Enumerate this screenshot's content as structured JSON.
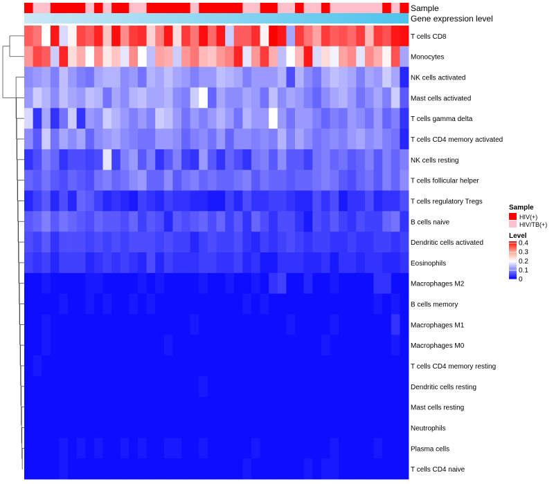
{
  "chart_data": {
    "type": "heatmap",
    "annotation_rows": [
      "Sample",
      "Gene expression level"
    ],
    "rows": [
      "T cells CD8",
      "Monocytes",
      "NK cells activated",
      "Mast cells activated",
      "T cells gamma delta",
      "T cells CD4 memory activated",
      "NK cells resting",
      "T cells follicular helper",
      "T cells regulatory  Tregs",
      "B cells naive",
      "Dendritic cells activated",
      "Eosinophils",
      "Macrophages M2",
      "B cells memory",
      "Macrophages M1",
      "Macrophages M0",
      "T cells CD4 memory resting",
      "Dendritic cells resting",
      "Mast cells resting",
      "Neutrophils",
      "Plasma cells",
      "T cells CD4 naive"
    ],
    "n_columns": 44,
    "sample_groups": [
      "HIV(+)",
      "HIV/TB(+)"
    ],
    "sample_annotation": [
      0,
      1,
      1,
      0,
      0,
      0,
      0,
      1,
      0,
      1,
      0,
      0,
      1,
      1,
      0,
      0,
      0,
      0,
      0,
      1,
      0,
      0,
      0,
      0,
      0,
      1,
      1,
      0,
      0,
      1,
      1,
      0,
      1,
      1,
      0,
      1,
      1,
      1,
      1,
      1,
      1,
      0,
      1,
      0
    ],
    "values": [
      [
        0.34,
        0.32,
        0.2,
        0.4,
        0.17,
        0.21,
        0.36,
        0.34,
        0.39,
        0.25,
        0.41,
        0.3,
        0.37,
        0.38,
        0.24,
        0.31,
        0.4,
        0.23,
        0.37,
        0.32,
        0.41,
        0.33,
        0.4,
        0.16,
        0.34,
        0.34,
        0.38,
        0.21,
        0.42,
        0.4,
        0.13,
        0.37,
        0.32,
        0.28,
        0.37,
        0.34,
        0.35,
        0.33,
        0.37,
        0.26,
        0.37,
        0.35,
        0.4,
        0.41
      ],
      [
        0.29,
        0.36,
        0.34,
        0.16,
        0.39,
        0.23,
        0.27,
        0.2,
        0.3,
        0.22,
        0.25,
        0.18,
        0.3,
        0.2,
        0.15,
        0.28,
        0.27,
        0.16,
        0.29,
        0.32,
        0.26,
        0.25,
        0.29,
        0.31,
        0.39,
        0.18,
        0.29,
        0.37,
        0.27,
        0.15,
        0.2,
        0.26,
        0.4,
        0.17,
        0.23,
        0.19,
        0.28,
        0.3,
        0.18,
        0.3,
        0.27,
        0.21,
        0.35,
        0.13
      ],
      [
        0.11,
        0.12,
        0.13,
        0.1,
        0.15,
        0.12,
        0.1,
        0.09,
        0.13,
        0.14,
        0.14,
        0.11,
        0.12,
        0.09,
        0.14,
        0.13,
        0.15,
        0.13,
        0.12,
        0.1,
        0.12,
        0.12,
        0.15,
        0.14,
        0.13,
        0.1,
        0.12,
        0.12,
        0.12,
        0.14,
        0.06,
        0.14,
        0.11,
        0.09,
        0.13,
        0.15,
        0.14,
        0.13,
        0.1,
        0.13,
        0.12,
        0.16,
        0.13,
        0.03
      ],
      [
        0.12,
        0.16,
        0.14,
        0.11,
        0.15,
        0.13,
        0.12,
        0.15,
        0.14,
        0.09,
        0.13,
        0.11,
        0.14,
        0.15,
        0.13,
        0.13,
        0.14,
        0.11,
        0.1,
        0.16,
        0.2,
        0.08,
        0.13,
        0.11,
        0.11,
        0.13,
        0.12,
        0.09,
        0.15,
        0.11,
        0.13,
        0.12,
        0.1,
        0.08,
        0.11,
        0.13,
        0.14,
        0.12,
        0.09,
        0.11,
        0.13,
        0.1,
        0.16,
        0.07
      ],
      [
        0.17,
        0.04,
        0.13,
        0.04,
        0.09,
        0.16,
        0.04,
        0.12,
        0.11,
        0.16,
        0.14,
        0.12,
        0.1,
        0.12,
        0.1,
        0.16,
        0.15,
        0.12,
        0.09,
        0.12,
        0.1,
        0.12,
        0.14,
        0.12,
        0.09,
        0.14,
        0.12,
        0.12,
        0.2,
        0.12,
        0.09,
        0.12,
        0.12,
        0.1,
        0.08,
        0.1,
        0.09,
        0.12,
        0.11,
        0.09,
        0.12,
        0.08,
        0.1,
        0.04
      ],
      [
        0.11,
        0.07,
        0.16,
        0.09,
        0.13,
        0.11,
        0.13,
        0.08,
        0.11,
        0.12,
        0.13,
        0.11,
        0.1,
        0.09,
        0.09,
        0.12,
        0.12,
        0.11,
        0.08,
        0.1,
        0.11,
        0.09,
        0.12,
        0.08,
        0.11,
        0.11,
        0.1,
        0.11,
        0.1,
        0.14,
        0.1,
        0.13,
        0.11,
        0.09,
        0.1,
        0.11,
        0.1,
        0.12,
        0.13,
        0.11,
        0.12,
        0.1,
        0.09,
        0.03
      ],
      [
        0.04,
        0.06,
        0.1,
        0.08,
        0.04,
        0.06,
        0.06,
        0.05,
        0.06,
        0.18,
        0.05,
        0.1,
        0.12,
        0.07,
        0.1,
        0.04,
        0.07,
        0.1,
        0.05,
        0.04,
        0.12,
        0.07,
        0.04,
        0.08,
        0.06,
        0.04,
        0.09,
        0.1,
        0.07,
        0.11,
        0.07,
        0.07,
        0.05,
        0.09,
        0.1,
        0.08,
        0.09,
        0.07,
        0.08,
        0.1,
        0.07,
        0.1,
        0.08,
        0.1
      ],
      [
        0.08,
        0.07,
        0.09,
        0.07,
        0.06,
        0.08,
        0.07,
        0.06,
        0.09,
        0.1,
        0.08,
        0.09,
        0.11,
        0.12,
        0.08,
        0.08,
        0.11,
        0.07,
        0.09,
        0.1,
        0.08,
        0.09,
        0.08,
        0.08,
        0.09,
        0.1,
        0.07,
        0.09,
        0.08,
        0.08,
        0.07,
        0.08,
        0.08,
        0.09,
        0.1,
        0.09,
        0.07,
        0.06,
        0.08,
        0.09,
        0.07,
        0.1,
        0.08,
        0.11
      ],
      [
        0.03,
        0.05,
        0.07,
        0.03,
        0.06,
        0.03,
        0.08,
        0.07,
        0.05,
        0.03,
        0.04,
        0.03,
        0.02,
        0.05,
        0.04,
        0.03,
        0.05,
        0.04,
        0.04,
        0.03,
        0.03,
        0.02,
        0.02,
        0.05,
        0.03,
        0.06,
        0.04,
        0.04,
        0.05,
        0.05,
        0.04,
        0.03,
        0.03,
        0.06,
        0.04,
        0.06,
        0.02,
        0.04,
        0.04,
        0.06,
        0.03,
        0.04,
        0.04,
        0.06
      ],
      [
        0.07,
        0.08,
        0.1,
        0.07,
        0.09,
        0.08,
        0.07,
        0.06,
        0.08,
        0.07,
        0.07,
        0.06,
        0.08,
        0.05,
        0.07,
        0.06,
        0.03,
        0.07,
        0.06,
        0.07,
        0.08,
        0.06,
        0.08,
        0.05,
        0.07,
        0.04,
        0.08,
        0.06,
        0.04,
        0.06,
        0.06,
        0.04,
        0.02,
        0.06,
        0.05,
        0.07,
        0.05,
        0.04,
        0.06,
        0.05,
        0.05,
        0.08,
        0.09,
        0.04
      ],
      [
        0.06,
        0.05,
        0.07,
        0.04,
        0.06,
        0.06,
        0.06,
        0.05,
        0.06,
        0.05,
        0.06,
        0.05,
        0.06,
        0.06,
        0.06,
        0.05,
        0.06,
        0.05,
        0.05,
        0.03,
        0.05,
        0.06,
        0.05,
        0.05,
        0.06,
        0.04,
        0.03,
        0.05,
        0.04,
        0.05,
        0.06,
        0.05,
        0.04,
        0.05,
        0.05,
        0.04,
        0.04,
        0.05,
        0.04,
        0.04,
        0.05,
        0.05,
        0.04,
        0.05
      ],
      [
        0.05,
        0.04,
        0.05,
        0.03,
        0.05,
        0.05,
        0.05,
        0.03,
        0.04,
        0.05,
        0.04,
        0.05,
        0.04,
        0.03,
        0.06,
        0.03,
        0.05,
        0.04,
        0.04,
        0.04,
        0.05,
        0.05,
        0.04,
        0.04,
        0.05,
        0.03,
        0.04,
        0.02,
        0.02,
        0.04,
        0.04,
        0.04,
        0.03,
        0.03,
        0.04,
        0.02,
        0.04,
        0.04,
        0.03,
        0.04,
        0.04,
        0.03,
        0.03,
        0.04
      ],
      [
        0.01,
        0.01,
        0.02,
        0.01,
        0.01,
        0.01,
        0.01,
        0.02,
        0.02,
        0.01,
        0.01,
        0.01,
        0.01,
        0.02,
        0.01,
        0.02,
        0.01,
        0.01,
        0.01,
        0.01,
        0.02,
        0.01,
        0.01,
        0.02,
        0.01,
        0.01,
        0.02,
        0.01,
        0.04,
        0.05,
        0.01,
        0.01,
        0.03,
        0.01,
        0.01,
        0.02,
        0.01,
        0.01,
        0.01,
        0.01,
        0.04,
        0.04,
        0.01,
        0.01
      ],
      [
        0.01,
        0.01,
        0.01,
        0.01,
        0.02,
        0.01,
        0.01,
        0.02,
        0.01,
        0.02,
        0.01,
        0.01,
        0.02,
        0.01,
        0.02,
        0.01,
        0.01,
        0.01,
        0.01,
        0.01,
        0.01,
        0.01,
        0.01,
        0.01,
        0.01,
        0.02,
        0.01,
        0.02,
        0.01,
        0.01,
        0.01,
        0.01,
        0.01,
        0.01,
        0.01,
        0.01,
        0.01,
        0.01,
        0.01,
        0.01,
        0.02,
        0.01,
        0.02,
        0.01
      ],
      [
        0.01,
        0.01,
        0.02,
        0.01,
        0.01,
        0.01,
        0.01,
        0.01,
        0.01,
        0.01,
        0.01,
        0.01,
        0.01,
        0.01,
        0.01,
        0.01,
        0.01,
        0.01,
        0.01,
        0.02,
        0.01,
        0.01,
        0.01,
        0.01,
        0.01,
        0.01,
        0.01,
        0.01,
        0.01,
        0.01,
        0.02,
        0.01,
        0.01,
        0.01,
        0.01,
        0.02,
        0.01,
        0.01,
        0.01,
        0.01,
        0.01,
        0.01,
        0.04,
        0.01
      ],
      [
        0.01,
        0.01,
        0.02,
        0.01,
        0.01,
        0.01,
        0.01,
        0.01,
        0.01,
        0.01,
        0.01,
        0.01,
        0.01,
        0.01,
        0.01,
        0.01,
        0.02,
        0.01,
        0.01,
        0.01,
        0.01,
        0.01,
        0.01,
        0.01,
        0.01,
        0.01,
        0.01,
        0.01,
        0.01,
        0.01,
        0.01,
        0.01,
        0.01,
        0.01,
        0.02,
        0.01,
        0.01,
        0.01,
        0.01,
        0.01,
        0.01,
        0.01,
        0.02,
        0.01
      ],
      [
        0.01,
        0.02,
        0.01,
        0.01,
        0.01,
        0.01,
        0.01,
        0.01,
        0.01,
        0.01,
        0.01,
        0.01,
        0.01,
        0.01,
        0.01,
        0.01,
        0.01,
        0.01,
        0.01,
        0.01,
        0.01,
        0.01,
        0.01,
        0.01,
        0.01,
        0.01,
        0.01,
        0.01,
        0.01,
        0.01,
        0.01,
        0.01,
        0.01,
        0.01,
        0.01,
        0.01,
        0.01,
        0.01,
        0.01,
        0.01,
        0.01,
        0.01,
        0.01,
        0.01
      ],
      [
        0.01,
        0.01,
        0.01,
        0.01,
        0.01,
        0.01,
        0.01,
        0.01,
        0.01,
        0.01,
        0.01,
        0.01,
        0.01,
        0.01,
        0.01,
        0.01,
        0.01,
        0.01,
        0.01,
        0.01,
        0.02,
        0.01,
        0.01,
        0.01,
        0.01,
        0.01,
        0.01,
        0.01,
        0.01,
        0.01,
        0.01,
        0.01,
        0.01,
        0.01,
        0.01,
        0.01,
        0.01,
        0.01,
        0.01,
        0.01,
        0.01,
        0.01,
        0.01,
        0.01
      ],
      [
        0.01,
        0.01,
        0.01,
        0.01,
        0.01,
        0.01,
        0.01,
        0.01,
        0.01,
        0.01,
        0.01,
        0.01,
        0.01,
        0.01,
        0.01,
        0.01,
        0.01,
        0.01,
        0.01,
        0.01,
        0.01,
        0.01,
        0.01,
        0.01,
        0.01,
        0.01,
        0.01,
        0.01,
        0.01,
        0.01,
        0.01,
        0.01,
        0.01,
        0.01,
        0.01,
        0.01,
        0.01,
        0.01,
        0.01,
        0.01,
        0.01,
        0.01,
        0.01,
        0.01
      ],
      [
        0.01,
        0.01,
        0.01,
        0.01,
        0.01,
        0.01,
        0.01,
        0.01,
        0.01,
        0.01,
        0.01,
        0.01,
        0.01,
        0.01,
        0.01,
        0.01,
        0.01,
        0.01,
        0.01,
        0.01,
        0.01,
        0.01,
        0.01,
        0.01,
        0.01,
        0.01,
        0.01,
        0.01,
        0.01,
        0.01,
        0.01,
        0.01,
        0.01,
        0.01,
        0.01,
        0.01,
        0.01,
        0.01,
        0.01,
        0.01,
        0.01,
        0.01,
        0.01,
        0.01
      ],
      [
        0.01,
        0.01,
        0.01,
        0.01,
        0.02,
        0.01,
        0.02,
        0.01,
        0.02,
        0.01,
        0.01,
        0.02,
        0.01,
        0.02,
        0.01,
        0.01,
        0.02,
        0.02,
        0.01,
        0.01,
        0.02,
        0.01,
        0.01,
        0.01,
        0.01,
        0.01,
        0.02,
        0.01,
        0.01,
        0.01,
        0.01,
        0.01,
        0.01,
        0.01,
        0.01,
        0.02,
        0.01,
        0.01,
        0.01,
        0.01,
        0.02,
        0.01,
        0.01,
        0.01
      ],
      [
        0.01,
        0.01,
        0.01,
        0.01,
        0.02,
        0.01,
        0.01,
        0.01,
        0.01,
        0.01,
        0.01,
        0.01,
        0.01,
        0.01,
        0.01,
        0.01,
        0.01,
        0.01,
        0.01,
        0.01,
        0.01,
        0.01,
        0.01,
        0.01,
        0.01,
        0.02,
        0.01,
        0.01,
        0.01,
        0.01,
        0.01,
        0.01,
        0.02,
        0.01,
        0.02,
        0.02,
        0.01,
        0.01,
        0.01,
        0.01,
        0.01,
        0.01,
        0.01,
        0.01
      ]
    ],
    "value_range": [
      0,
      0.42
    ],
    "legend": {
      "sample_title": "Sample",
      "sample_items": [
        "HIV(+)",
        "HIV/TB(+)"
      ],
      "level_title": "Level",
      "level_ticks": [
        "0.4",
        "0.3",
        "0.2",
        "0.1",
        "0"
      ],
      "level_tick_values": [
        0.4,
        0.3,
        0.2,
        0.1,
        0
      ],
      "placement": "right"
    },
    "dendrogram": "rows",
    "colors": {
      "sample_hiv": "#ff0000",
      "sample_hivtb": "#ffc0cb",
      "low": "#0000ff",
      "mid": "#ffffff",
      "high": "#ff0000",
      "gradient_start": "#cce8f6",
      "gradient_end": "#4cc3ec"
    }
  }
}
